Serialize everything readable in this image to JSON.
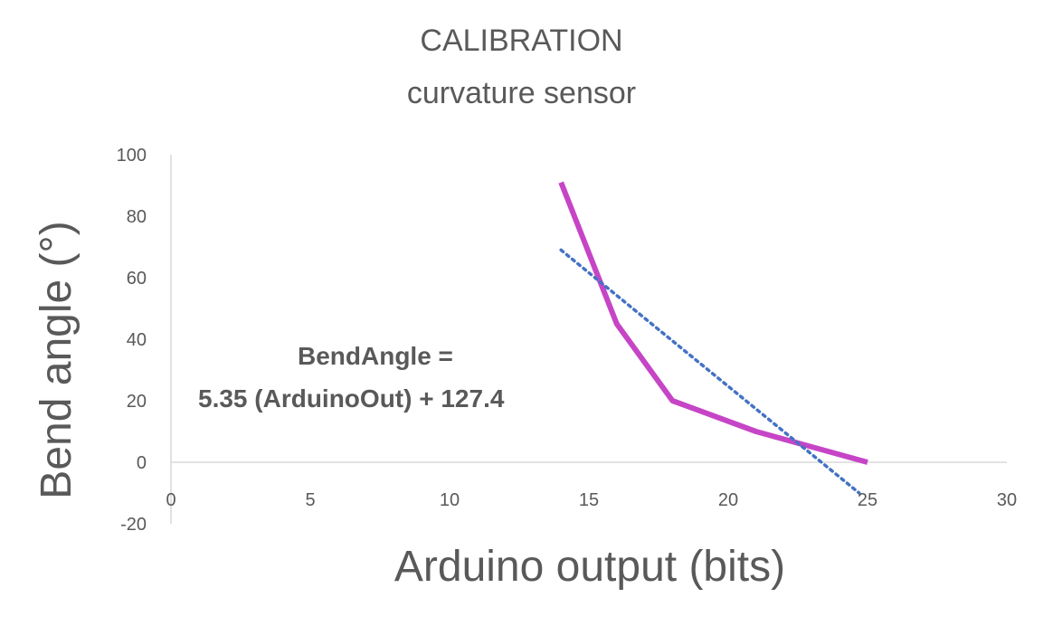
{
  "chart_data": {
    "type": "line",
    "title": "CALIBRATION",
    "subtitle": "curvature sensor",
    "xlabel": "Arduino output (bits)",
    "ylabel": "Bend angle (°)",
    "xlim": [
      0,
      30
    ],
    "ylim": [
      -20,
      100
    ],
    "xticks": [
      "0",
      "5",
      "10",
      "15",
      "20",
      "25",
      "30"
    ],
    "yticks": [
      "100",
      "80",
      "60",
      "40",
      "20",
      "0",
      "-20"
    ],
    "grid": false,
    "legend": "none",
    "series": [
      {
        "color": "#c645c6",
        "style": "solid",
        "x": [
          14,
          16,
          18,
          21,
          25
        ],
        "y": [
          91,
          45,
          20,
          10,
          0
        ]
      },
      {
        "color": "#4472c4",
        "style": "dotted",
        "x": [
          14,
          24.7
        ],
        "y": [
          69,
          -10
        ]
      }
    ],
    "annotation": {
      "line1": "BendAngle =",
      "line2": "5.35 (ArduinoOut) + 127.4"
    }
  }
}
